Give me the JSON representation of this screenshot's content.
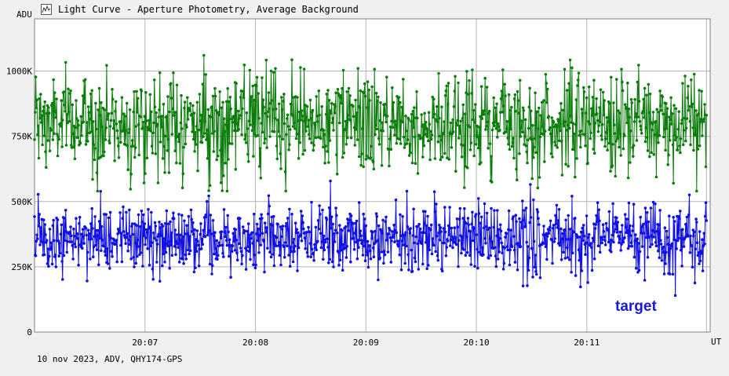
{
  "window": {
    "title": "Light Curve - Aperture Photometry, Average Background",
    "icon": "chart-icon"
  },
  "footer": "10 nov 2023, ADV, QHY174-GPS",
  "target_label": "target",
  "colors": {
    "background": "#f0f0f0",
    "plot_background": "#ffffff",
    "grid": "#b4b4b4",
    "series_comparison": "#0a7d0a",
    "series_target": "#1010e6",
    "target_text": "#1a1ad0"
  },
  "chart_data": {
    "type": "line",
    "title": "Light Curve - Aperture Photometry, Average Background",
    "ylabel": "ADU",
    "xlabel": "UT",
    "ylim": [
      0,
      1200000
    ],
    "ytick_values": [
      0,
      250000,
      500000,
      750000,
      1000000
    ],
    "ytick_labels": [
      "0",
      "250K",
      "500K",
      "750K",
      "1000K"
    ],
    "xlim": [
      "20:06:00",
      "20:12:07"
    ],
    "xtick_values": [
      "20:07:00",
      "20:08:00",
      "20:09:00",
      "20:10:00",
      "20:11:00"
    ],
    "xtick_labels": [
      "20:07",
      "20:08",
      "20:09",
      "20:10",
      "20:11"
    ],
    "grid": true,
    "legend": "none",
    "series": [
      {
        "name": "",
        "color": "#0a7d0a",
        "marker": "dot",
        "n_points": 1100,
        "x_start": "20:06:00",
        "x_end": "20:12:05",
        "mean": 800000,
        "std": 95000,
        "min": 540000,
        "max": 1160000
      },
      {
        "name": "target",
        "color": "#1010e6",
        "marker": "dot",
        "n_points": 1100,
        "x_start": "20:06:00",
        "x_end": "20:12:05",
        "mean": 360000,
        "std": 65000,
        "min": 140000,
        "max": 600000
      }
    ]
  }
}
